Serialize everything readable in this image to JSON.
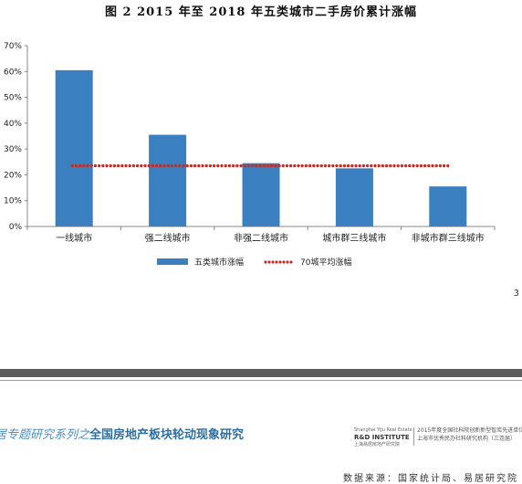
{
  "page": {
    "figure_title": "图 2  2015 年至 2018 年五类城市二手房价累计涨幅",
    "page_number": "3",
    "footer_series_prefix": "居专题研究系列之",
    "footer_series_title": "全国房地产板块轮动现象研究",
    "footer_logo_top": "Shanghai YiJu Real Estate",
    "footer_logo_main": "R&D INSTITUTE",
    "footer_logo_sub": "上海易居房地产研究院",
    "footer_award_line1": "2015年度全国社科院创新新型智库先进单位",
    "footer_award_line2": "上海市优秀民办社科研究机构（三连届）",
    "source": "数据来源：国家统计局、易居研究院"
  },
  "chart_data": {
    "type": "bar",
    "title": "图 2  2015 年至 2018 年五类城市二手房价累计涨幅",
    "categories": [
      "一线城市",
      "强二线城市",
      "非强二线城市",
      "城市群三线城市",
      "非城市群三线城市"
    ],
    "series": [
      {
        "name": "五类城市涨幅",
        "type": "bar",
        "values": [
          60.5,
          35.5,
          24.5,
          22.5,
          15.5
        ],
        "color": "#3A7FBF"
      },
      {
        "name": "70城平均涨幅",
        "type": "line",
        "style": "dotted",
        "values": [
          23.5,
          23.5,
          23.5,
          23.5,
          23.5
        ],
        "color": "#C0302A"
      }
    ],
    "y_ticks": [
      "0%",
      "10%",
      "20%",
      "30%",
      "40%",
      "50%",
      "60%",
      "70%"
    ],
    "ylim": [
      0,
      70
    ],
    "y_unit": "%",
    "grid": false,
    "legend_position": "bottom"
  }
}
